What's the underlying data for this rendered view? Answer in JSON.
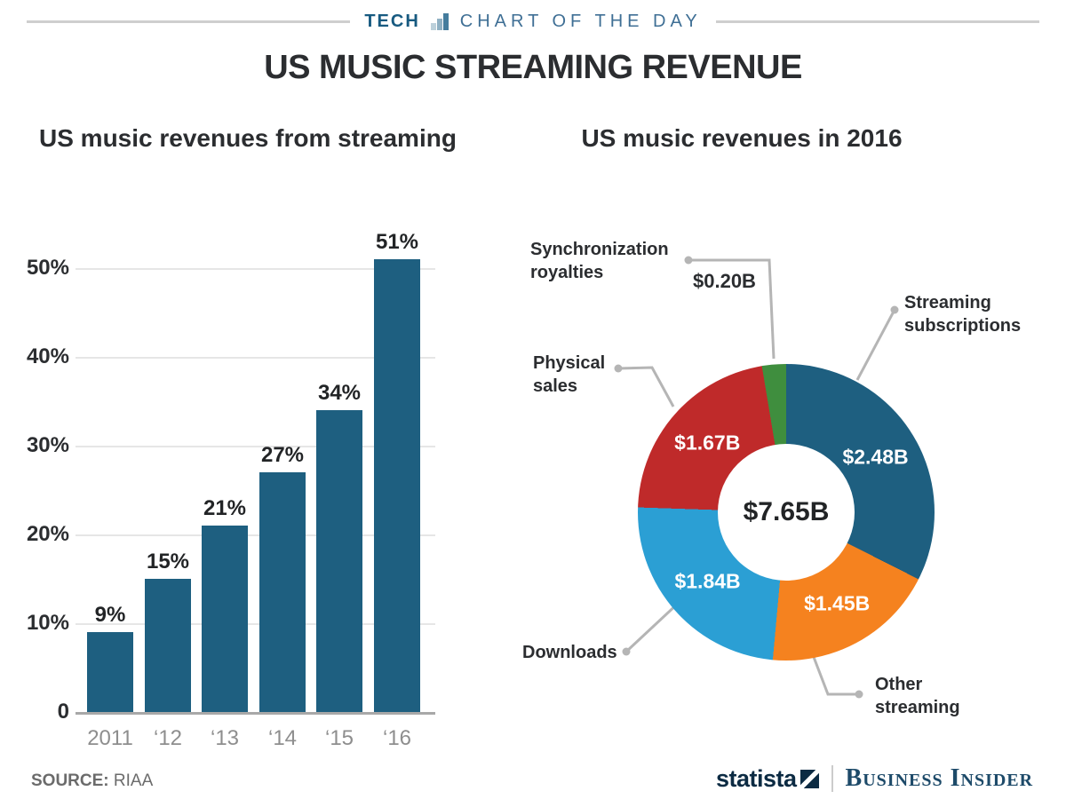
{
  "header": {
    "tag_left": "TECH",
    "tag_right": "CHART OF THE DAY",
    "icon_bar_colors": [
      "#bcd0da",
      "#8fb0c3",
      "#447c9d"
    ],
    "line_color": "#cfcfcf"
  },
  "title": "US MUSIC STREAMING REVENUE",
  "chart_data": [
    {
      "type": "bar",
      "title": "US music revenues from streaming",
      "categories": [
        "2011",
        "‘12",
        "‘13",
        "‘14",
        "‘15",
        "‘16"
      ],
      "values": [
        9,
        15,
        21,
        27,
        34,
        51
      ],
      "value_labels": [
        "9%",
        "15%",
        "21%",
        "27%",
        "34%",
        "51%"
      ],
      "bar_color": "#1e5f80",
      "ylim": [
        0,
        55
      ],
      "grid": true,
      "yticks": [
        {
          "value": 0,
          "label": "0"
        },
        {
          "value": 10,
          "label": "10%"
        },
        {
          "value": 20,
          "label": "20%"
        },
        {
          "value": 30,
          "label": "30%"
        },
        {
          "value": 40,
          "label": "40%"
        },
        {
          "value": 50,
          "label": "50%"
        }
      ]
    },
    {
      "type": "donut",
      "title": "US music revenues in 2016",
      "total_label": "$7.65B",
      "start_angle_deg": 0,
      "direction": "clockwise",
      "slices": [
        {
          "label": "Streaming subscriptions",
          "value": 2.48,
          "display": "$2.48B",
          "color": "#1e5f80",
          "label_inside": true
        },
        {
          "label": "Other streaming",
          "value": 1.45,
          "display": "$1.45B",
          "color": "#f5821f",
          "label_inside": true
        },
        {
          "label": "Downloads",
          "value": 1.84,
          "display": "$1.84B",
          "color": "#2b9fd4",
          "label_inside": true
        },
        {
          "label": "Physical sales",
          "value": 1.67,
          "display": "$1.67B",
          "color": "#bf2a2a",
          "label_inside": true
        },
        {
          "label": "Synchronization royalties",
          "value": 0.2,
          "display": "$0.20B",
          "color": "#3f8e3e",
          "label_inside": false
        }
      ],
      "leader_line_color": "#b5b5b5"
    }
  ],
  "footer": {
    "source_label": "SOURCE:",
    "source_value": "RIAA",
    "brand_statista": "statista",
    "brand_business_insider": "Business Insider"
  }
}
